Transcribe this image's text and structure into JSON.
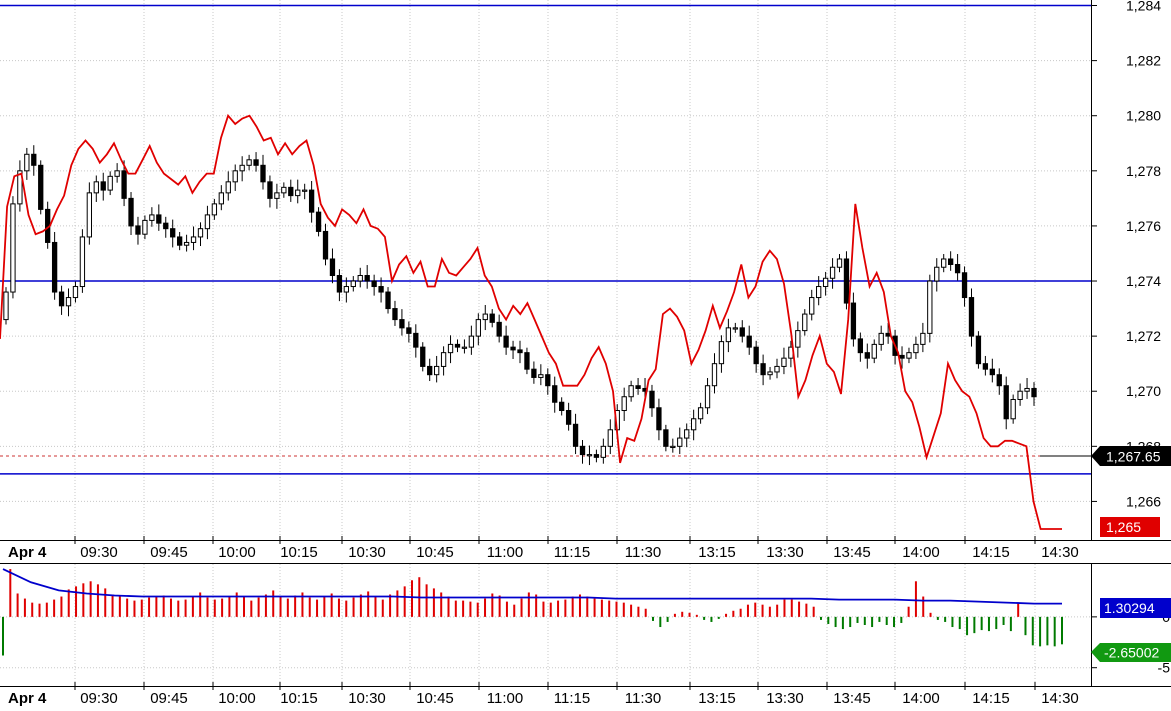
{
  "chart_data": [
    {
      "type": "candlestick",
      "title": "",
      "x_tick_labels": [
        "Apr 4",
        "09:30",
        "09:45",
        "10:00",
        "10:15",
        "10:30",
        "10:45",
        "11:00",
        "11:15",
        "11:30",
        "13:15",
        "13:30",
        "13:45",
        "14:00",
        "14:15",
        "14:30"
      ],
      "y_tick_labels": [
        "1,266",
        "1,268",
        "1,270",
        "1,272",
        "1,274",
        "1,276",
        "1,278",
        "1,280",
        "1,282",
        "1,284"
      ],
      "ylim": [
        1264.6,
        1284.2
      ],
      "grid": true,
      "horizontal_levels": [
        1284.0,
        1274.0,
        1267.0
      ],
      "last_price_line": 1267.65,
      "last_price_label": "1,267.65",
      "overlay_last_label": "1,265",
      "colors": {
        "candles": "#000000",
        "overlay": "#e00000",
        "levels": "#0000cc",
        "last_price_badge": "#000000",
        "overlay_badge": "#e00000"
      },
      "series": [
        {
          "kind": "price",
          "values": [
            1273.6,
            1276.8,
            1278.0,
            1278.6,
            1278.2,
            1276.6,
            1275.4,
            1273.6,
            1273.1,
            1273.4,
            1273.8,
            1275.6,
            1277.2,
            1277.6,
            1277.3,
            1277.8,
            1278.0,
            1277.0,
            1276.0,
            1275.7,
            1276.2,
            1276.4,
            1276.1,
            1275.9,
            1275.6,
            1275.3,
            1275.4,
            1275.6,
            1275.9,
            1276.4,
            1276.8,
            1277.2,
            1277.6,
            1278.0,
            1278.2,
            1278.4,
            1278.2,
            1277.6,
            1277.0,
            1277.2,
            1277.4,
            1277.1,
            1277.3,
            1277.3,
            1276.5,
            1275.8,
            1274.8,
            1274.2,
            1273.6,
            1273.8,
            1274.0,
            1274.2,
            1274.0,
            1273.8,
            1273.6,
            1273.0,
            1272.6,
            1272.3,
            1272.1,
            1271.6,
            1270.9,
            1270.6,
            1270.9,
            1271.4,
            1271.7,
            1271.6,
            1271.6,
            1272.0,
            1272.6,
            1272.8,
            1272.5,
            1272.0,
            1271.6,
            1271.5,
            1271.4,
            1270.8,
            1270.5,
            1270.6,
            1270.2,
            1269.6,
            1269.3,
            1268.8,
            1268.0,
            1267.7,
            1267.7,
            1267.6,
            1268.0,
            1268.6,
            1269.3,
            1269.8,
            1270.2,
            1270.1,
            1270.0,
            1269.4,
            1268.6,
            1268.0,
            1268.0,
            1268.3,
            1268.6,
            1269.0,
            1269.4,
            1270.2,
            1271.0,
            1271.8,
            1272.3,
            1272.3,
            1272.0,
            1271.6,
            1271.0,
            1270.6,
            1270.7,
            1270.9,
            1271.2,
            1271.6,
            1272.2,
            1272.8,
            1273.4,
            1273.8,
            1274.1,
            1274.5,
            1274.8,
            1273.2,
            1271.9,
            1271.4,
            1271.2,
            1271.7,
            1272.1,
            1272.0,
            1271.3,
            1271.2,
            1271.4,
            1271.7,
            1272.1,
            1274.0,
            1274.5,
            1274.8,
            1274.6,
            1274.3,
            1273.4,
            1272.0,
            1271.0,
            1270.8,
            1270.6,
            1270.2,
            1269.0,
            1269.7,
            1270.0,
            1270.1,
            1269.8
          ]
        },
        {
          "kind": "overlay_line",
          "values": [
            1271.9,
            1276.7,
            1277.8,
            1277.9,
            1276.4,
            1275.7,
            1275.8,
            1276.0,
            1276.6,
            1277.1,
            1278.2,
            1278.8,
            1279.1,
            1278.8,
            1278.3,
            1278.6,
            1279.0,
            1278.4,
            1277.9,
            1277.9,
            1278.4,
            1278.9,
            1278.3,
            1277.9,
            1277.7,
            1277.5,
            1277.8,
            1277.2,
            1277.6,
            1277.9,
            1277.9,
            1279.2,
            1280.0,
            1279.7,
            1279.9,
            1280.0,
            1279.6,
            1279.1,
            1279.2,
            1278.6,
            1279.0,
            1278.6,
            1278.9,
            1279.1,
            1278.2,
            1276.8,
            1276.3,
            1276.0,
            1276.6,
            1276.4,
            1276.1,
            1276.6,
            1276.0,
            1275.9,
            1275.6,
            1274.0,
            1274.6,
            1274.9,
            1274.3,
            1274.7,
            1273.8,
            1273.8,
            1274.8,
            1274.3,
            1274.2,
            1274.5,
            1274.8,
            1275.2,
            1274.2,
            1273.8,
            1273.0,
            1272.6,
            1273.1,
            1272.8,
            1273.2,
            1272.6,
            1272.0,
            1271.4,
            1271.0,
            1270.2,
            1270.2,
            1270.2,
            1270.6,
            1271.2,
            1271.6,
            1271.0,
            1270.0,
            1267.4,
            1268.3,
            1268.2,
            1269.0,
            1270.4,
            1270.8,
            1272.8,
            1273.0,
            1272.7,
            1272.2,
            1271.0,
            1271.5,
            1272.2,
            1273.1,
            1272.3,
            1272.9,
            1273.6,
            1274.6,
            1273.4,
            1273.8,
            1274.7,
            1275.1,
            1274.8,
            1273.9,
            1272.1,
            1269.8,
            1270.4,
            1271.3,
            1272.0,
            1271.0,
            1270.7,
            1269.9,
            1272.6,
            1276.8,
            1275.2,
            1273.8,
            1274.3,
            1273.6,
            1272.0,
            1271.4,
            1270.0,
            1269.6,
            1268.7,
            1267.6,
            1268.4,
            1269.2,
            1271.0,
            1270.4,
            1270.0,
            1269.8,
            1269.2,
            1268.3,
            1268.0,
            1268.0,
            1268.2,
            1268.2,
            1268.1,
            1268.0,
            1266.0,
            1265.0,
            1265.0,
            1265.0,
            1265.0
          ]
        }
      ]
    },
    {
      "type": "bar",
      "title": "",
      "y_tick_labels": [
        "0",
        "-5"
      ],
      "ylim": [
        -6.8,
        5.2
      ],
      "grid": true,
      "line_last_label": "1.30294",
      "bar_last_label": "-2.65002",
      "colors": {
        "positive": "#e00000",
        "negative": "#007a00",
        "line": "#0000cc",
        "line_badge": "#0000cc",
        "bar_badge": "#119911"
      },
      "series": [
        {
          "kind": "histogram",
          "values": [
            -3.8,
            4.7,
            2.3,
            1.8,
            1.4,
            1.3,
            1.4,
            1.7,
            2.0,
            2.7,
            3.0,
            3.3,
            3.5,
            3.2,
            2.8,
            2.2,
            2.1,
            1.8,
            1.6,
            1.7,
            1.9,
            2.0,
            2.1,
            1.8,
            1.6,
            1.7,
            2.0,
            2.4,
            1.9,
            1.7,
            1.8,
            2.0,
            2.4,
            2.0,
            1.6,
            1.9,
            2.2,
            2.6,
            2.0,
            1.8,
            2.1,
            2.4,
            1.9,
            1.7,
            2.0,
            2.3,
            1.8,
            1.6,
            1.9,
            2.2,
            2.5,
            2.0,
            1.7,
            2.2,
            2.6,
            3.0,
            3.6,
            3.9,
            3.2,
            2.8,
            2.4,
            2.0,
            1.6,
            1.6,
            1.5,
            1.4,
            1.8,
            2.3,
            2.1,
            1.5,
            1.2,
            1.8,
            2.4,
            2.2,
            1.5,
            1.4,
            1.6,
            1.7,
            2.0,
            2.2,
            2.0,
            1.8,
            1.7,
            1.6,
            1.5,
            1.4,
            1.2,
            1.0,
            0.8,
            -0.4,
            -1.0,
            -0.5,
            0.3,
            0.5,
            0.4,
            0.2,
            -0.3,
            -0.5,
            -0.2,
            0.3,
            0.6,
            0.8,
            1.2,
            1.4,
            1.2,
            1.0,
            1.2,
            1.7,
            1.7,
            1.5,
            1.3,
            1.0,
            -0.3,
            -0.7,
            -1.0,
            -1.2,
            -1.0,
            -0.6,
            -0.8,
            -1.0,
            -0.5,
            -0.8,
            -1.0,
            -0.6,
            1.0,
            3.5,
            2.0,
            0.4,
            -0.3,
            -0.5,
            -1.0,
            -1.2,
            -1.8,
            -1.6,
            -1.3,
            -1.4,
            -1.2,
            -0.8,
            -1.4,
            1.3,
            -1.8,
            -2.8,
            -2.9,
            -2.8,
            -2.9,
            -2.7
          ]
        },
        {
          "kind": "line",
          "values": [
            4.7,
            3.4,
            2.6,
            2.3,
            2.1,
            2.0,
            2.0,
            2.0,
            2.0,
            2.0,
            2.0,
            2.0,
            2.0,
            2.0,
            2.0,
            1.9,
            1.9,
            1.9,
            1.9,
            1.9,
            1.9,
            1.9,
            1.8,
            1.8,
            1.8,
            1.8,
            1.8,
            1.8,
            1.8,
            1.8,
            1.7,
            1.7,
            1.7,
            1.6,
            1.6,
            1.5,
            1.4,
            1.3,
            1.3
          ]
        }
      ]
    }
  ]
}
